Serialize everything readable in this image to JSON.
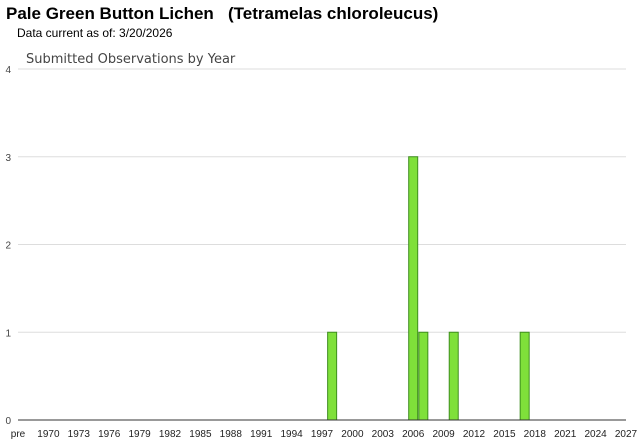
{
  "header": {
    "title": "Pale Green Button Lichen   (Tetramelas chloroleucus)",
    "subtitle": "Data current as of: 3/20/2026"
  },
  "colors": {
    "bar_fill": "#7FE03A",
    "bar_stroke": "#3E8E1E",
    "grid": "#dddddd",
    "axis": "#333333"
  },
  "chart_data": {
    "type": "bar",
    "title": "Submitted Observations by Year",
    "xlabel": "",
    "ylabel": "",
    "ylim": [
      0,
      4
    ],
    "yticks": [
      0,
      1,
      2,
      3,
      4
    ],
    "x_tick_labels": [
      "pre",
      "1970",
      "1973",
      "1976",
      "1979",
      "1982",
      "1985",
      "1988",
      "1991",
      "1994",
      "1997",
      "2000",
      "2003",
      "2006",
      "2009",
      "2012",
      "2015",
      "2018",
      "2021",
      "2024",
      "2027"
    ],
    "x_range": [
      1967,
      2027
    ],
    "bars": [
      {
        "year": 1998,
        "value": 1
      },
      {
        "year": 2006,
        "value": 3
      },
      {
        "year": 2007,
        "value": 1
      },
      {
        "year": 2010,
        "value": 1
      },
      {
        "year": 2017,
        "value": 1
      }
    ],
    "grid": true,
    "legend": "none"
  }
}
